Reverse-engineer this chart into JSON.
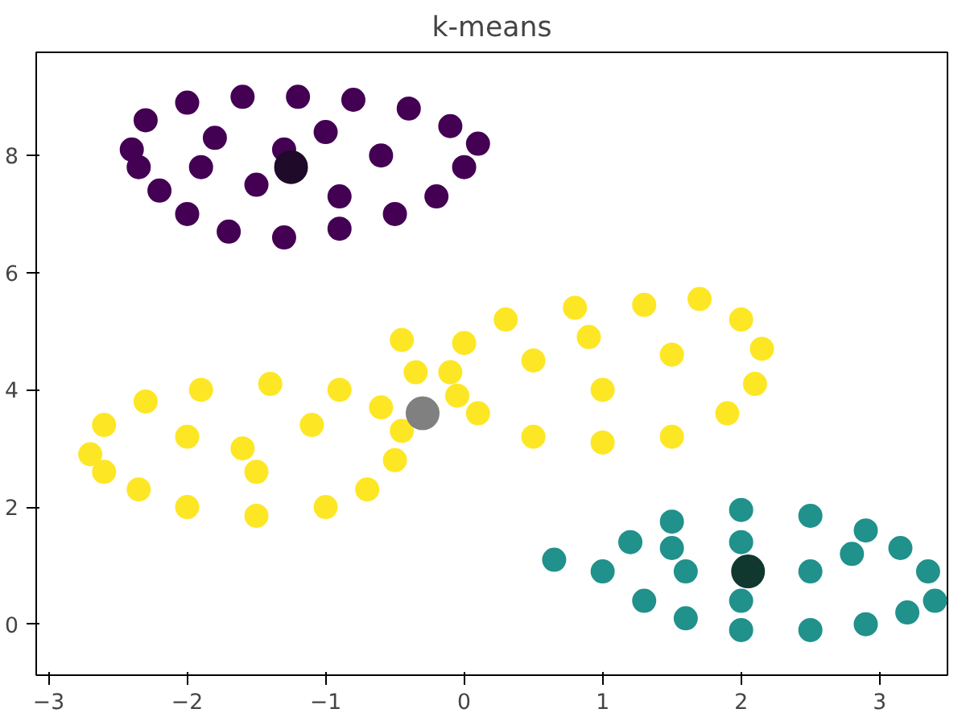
{
  "chart_data": {
    "type": "scatter",
    "title": "k-means",
    "marker": "circle",
    "grid": false,
    "xlim": [
      -3.09,
      3.49
    ],
    "ylim": [
      -0.87,
      9.76
    ],
    "xticks": [
      {
        "value": -3,
        "label": "−3"
      },
      {
        "value": -2,
        "label": "−2"
      },
      {
        "value": -1,
        "label": "−1"
      },
      0,
      1,
      2,
      3
    ],
    "yticks": [
      0,
      2,
      4,
      6,
      8
    ],
    "series": [
      {
        "color": "#440154",
        "x": [
          -2.4,
          -2.3,
          -2.0,
          -1.6,
          -1.2,
          -0.8,
          -0.4,
          -0.1,
          0.1,
          0.0,
          -0.2,
          -0.5,
          -0.9,
          -1.3,
          -1.7,
          -2.0,
          -2.2,
          -2.35,
          -1.8,
          -1.0,
          -0.6,
          -1.5,
          -0.9,
          -1.9,
          -1.3
        ],
        "values": [
          8.1,
          8.6,
          8.9,
          9.0,
          9.0,
          8.95,
          8.8,
          8.5,
          8.2,
          7.8,
          7.3,
          7.0,
          6.75,
          6.6,
          6.7,
          7.0,
          7.4,
          7.8,
          8.3,
          8.4,
          8.0,
          7.5,
          7.3,
          7.8,
          8.1
        ]
      },
      {
        "color": "#21918c",
        "x": [
          1.0,
          1.2,
          1.5,
          2.0,
          2.5,
          2.9,
          3.15,
          3.35,
          3.4,
          3.2,
          2.9,
          2.5,
          2.0,
          1.6,
          1.3,
          0.65,
          1.6,
          2.5,
          2.0,
          2.0,
          2.8,
          1.5
        ],
        "values": [
          0.9,
          1.4,
          1.75,
          1.95,
          1.85,
          1.6,
          1.3,
          0.9,
          0.4,
          0.2,
          0.0,
          -0.1,
          -0.1,
          0.1,
          0.4,
          1.1,
          0.9,
          0.9,
          1.4,
          0.4,
          1.2,
          1.3
        ]
      },
      {
        "color": "#fde725",
        "x": [
          -2.7,
          -2.6,
          -2.3,
          -1.9,
          -1.4,
          -0.9,
          -0.6,
          -0.45,
          -0.5,
          -0.7,
          -1.0,
          -1.5,
          -2.0,
          -2.35,
          -2.6,
          -2.0,
          -1.5,
          -1.1,
          -1.6,
          -0.45,
          -0.35,
          -0.1,
          0.0,
          0.3,
          0.8,
          1.3,
          1.7,
          2.0,
          2.15,
          2.1,
          1.9,
          1.5,
          1.0,
          0.5,
          0.1,
          -0.05,
          0.5,
          1.0,
          1.5,
          0.9
        ],
        "values": [
          2.9,
          3.4,
          3.8,
          4.0,
          4.1,
          4.0,
          3.7,
          3.3,
          2.8,
          2.3,
          2.0,
          1.85,
          2.0,
          2.3,
          2.6,
          3.2,
          2.6,
          3.4,
          3.0,
          4.85,
          4.3,
          4.3,
          4.8,
          5.2,
          5.4,
          5.45,
          5.55,
          5.2,
          4.7,
          4.1,
          3.6,
          3.2,
          3.1,
          3.2,
          3.6,
          3.9,
          4.5,
          4.0,
          4.6,
          4.9
        ]
      },
      {
        "colors": [
          "#1f0a2a",
          "#10382f",
          "#808080"
        ],
        "x": [
          -1.25,
          2.05,
          -0.3
        ],
        "values": [
          7.8,
          0.9,
          3.6
        ]
      }
    ]
  }
}
